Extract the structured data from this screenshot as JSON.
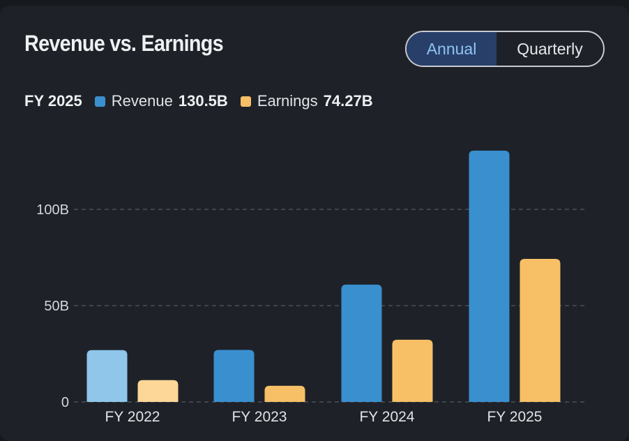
{
  "header": {
    "title": "Revenue vs. Earnings"
  },
  "toggle": {
    "options": [
      "Annual",
      "Quarterly"
    ],
    "selected": "Annual"
  },
  "legend": {
    "period": "FY 2025",
    "revenue_label": "Revenue",
    "revenue_value": "130.5B",
    "earnings_label": "Earnings",
    "earnings_value": "74.27B"
  },
  "colors": {
    "revenue": "#3a8fcf",
    "revenue_dim": "#8fc6ea",
    "earnings": "#f7c066",
    "earnings_dim": "#fcd797",
    "grid": "#4a4f57"
  },
  "chart_data": {
    "type": "bar",
    "categories": [
      "FY 2022",
      "FY 2023",
      "FY 2024",
      "FY 2025"
    ],
    "series": [
      {
        "name": "Revenue",
        "values": [
          26.9,
          27.0,
          60.9,
          130.5
        ]
      },
      {
        "name": "Earnings",
        "values": [
          11.3,
          8.4,
          32.3,
          74.27
        ]
      }
    ],
    "ylim": [
      0,
      140
    ],
    "yticks": [
      0,
      50,
      100
    ],
    "ytick_labels": [
      "0",
      "50B",
      "100B"
    ],
    "grid": true,
    "dimmed_category_index": 0
  }
}
